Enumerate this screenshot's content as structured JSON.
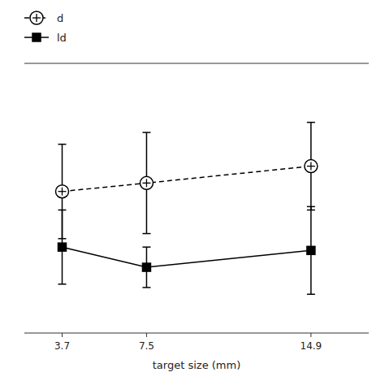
{
  "chart_data": {
    "type": "line",
    "x": [
      3.7,
      7.5,
      14.9
    ],
    "xlabel": "target size (mm)",
    "xlim": [
      2.0,
      17.5
    ],
    "xticks": [
      3.7,
      7.5,
      14.9
    ],
    "ylim": [
      1.0,
      9.0
    ],
    "tick_labels": "x",
    "legend": "upper left",
    "series": [
      {
        "name": "d",
        "color": "#000000",
        "marker": "circle-cross",
        "line_style": "dashed",
        "values": [
          5.2,
          5.45,
          5.95
        ],
        "yerr": [
          1.4,
          1.5,
          1.3
        ]
      },
      {
        "name": "ld",
        "color": "#000000",
        "marker": "square",
        "line_style": "solid",
        "values": [
          3.55,
          2.95,
          3.45
        ],
        "yerr": [
          1.1,
          0.6,
          1.3
        ]
      }
    ]
  }
}
